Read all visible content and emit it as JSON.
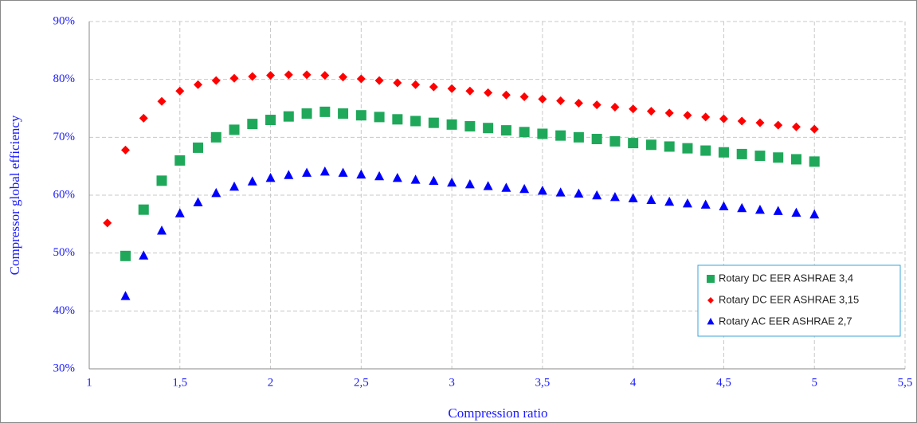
{
  "chart_data": {
    "type": "scatter",
    "x_label": "Compression ratio",
    "y_label": "Compressor global efficiency",
    "xlim": [
      1,
      5.5
    ],
    "xticks": [
      1,
      {
        "value": 1.5,
        "label": "1,5"
      },
      2,
      {
        "value": 2.5,
        "label": "2,5"
      },
      3,
      {
        "value": 3.5,
        "label": "3,5"
      },
      4,
      {
        "value": 4.5,
        "label": "4,5"
      },
      5,
      {
        "value": 5.5,
        "label": "5,5"
      }
    ],
    "ylim": [
      30,
      90
    ],
    "yticks": [
      {
        "value": 30,
        "label": "30%"
      },
      {
        "value": 40,
        "label": "40%"
      },
      {
        "value": 50,
        "label": "50%"
      },
      {
        "value": 60,
        "label": "60%"
      },
      {
        "value": 70,
        "label": "70%"
      },
      {
        "value": 80,
        "label": "80%"
      },
      {
        "value": 90,
        "label": "90%"
      }
    ],
    "grid": true,
    "legend": "lower right",
    "series": [
      {
        "name": "Rotary DC EER ASHRAE 3,4",
        "color": "#1fa85a",
        "marker": "square",
        "x": [
          1.2,
          1.3,
          1.4,
          1.5,
          1.6,
          1.7,
          1.8,
          1.9,
          2.0,
          2.1,
          2.2,
          2.3,
          2.4,
          2.5,
          2.6,
          2.7,
          2.8,
          2.9,
          3.0,
          3.1,
          3.2,
          3.3,
          3.4,
          3.5,
          3.6,
          3.7,
          3.8,
          3.9,
          4.0,
          4.1,
          4.2,
          4.3,
          4.4,
          4.5,
          4.6,
          4.7,
          4.8,
          4.9,
          5.0
        ],
        "values": [
          49.5,
          57.5,
          62.5,
          66,
          68.2,
          70,
          71.3,
          72.3,
          73,
          73.6,
          74.1,
          74.4,
          74.1,
          73.8,
          73.5,
          73.1,
          72.8,
          72.5,
          72.2,
          71.9,
          71.6,
          71.2,
          70.9,
          70.6,
          70.3,
          70,
          69.7,
          69.3,
          69,
          68.7,
          68.4,
          68.1,
          67.7,
          67.4,
          67.1,
          66.8,
          66.5,
          66.2,
          65.8
        ]
      },
      {
        "name": "Rotary DC EER ASHRAE 3,15",
        "color": "#ff0000",
        "marker": "diamond",
        "x": [
          1.1,
          1.2,
          1.3,
          1.4,
          1.5,
          1.6,
          1.7,
          1.8,
          1.9,
          2.0,
          2.1,
          2.2,
          2.3,
          2.4,
          2.5,
          2.6,
          2.7,
          2.8,
          2.9,
          3.0,
          3.1,
          3.2,
          3.3,
          3.4,
          3.5,
          3.6,
          3.7,
          3.8,
          3.9,
          4.0,
          4.1,
          4.2,
          4.3,
          4.4,
          4.5,
          4.6,
          4.7,
          4.8,
          4.9,
          5.0
        ],
        "values": [
          55.2,
          67.8,
          73.3,
          76.2,
          78,
          79.1,
          79.8,
          80.2,
          80.5,
          80.7,
          80.8,
          80.8,
          80.7,
          80.4,
          80.1,
          79.8,
          79.4,
          79.1,
          78.7,
          78.4,
          78,
          77.7,
          77.3,
          77,
          76.6,
          76.3,
          75.9,
          75.6,
          75.2,
          74.9,
          74.5,
          74.2,
          73.8,
          73.5,
          73.2,
          72.8,
          72.5,
          72.1,
          71.8,
          71.4
        ]
      },
      {
        "name": "Rotary AC EER ASHRAE 2,7",
        "color": "#0000ff",
        "marker": "triangle",
        "x": [
          1.2,
          1.3,
          1.4,
          1.5,
          1.6,
          1.7,
          1.8,
          1.9,
          2.0,
          2.1,
          2.2,
          2.3,
          2.4,
          2.5,
          2.6,
          2.7,
          2.8,
          2.9,
          3.0,
          3.1,
          3.2,
          3.3,
          3.4,
          3.5,
          3.6,
          3.7,
          3.8,
          3.9,
          4.0,
          4.1,
          4.2,
          4.3,
          4.4,
          4.5,
          4.6,
          4.7,
          4.8,
          4.9,
          5.0
        ],
        "values": [
          42.5,
          49.5,
          53.8,
          56.8,
          58.7,
          60.3,
          61.4,
          62.3,
          62.9,
          63.4,
          63.8,
          64,
          63.8,
          63.5,
          63.2,
          62.9,
          62.6,
          62.4,
          62.1,
          61.8,
          61.5,
          61.2,
          61,
          60.7,
          60.4,
          60.2,
          59.9,
          59.6,
          59.4,
          59.1,
          58.8,
          58.5,
          58.3,
          58,
          57.7,
          57.4,
          57.2,
          56.9,
          56.6
        ]
      }
    ]
  }
}
